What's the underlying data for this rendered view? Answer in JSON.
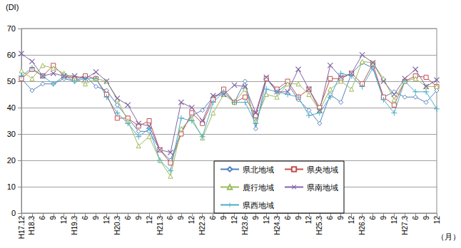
{
  "chart_data": {
    "type": "line",
    "y_label": "(DI)",
    "x_label": "（月）",
    "categories": [
      "H17.12",
      "H18.3",
      "6",
      "9",
      "12",
      "H19.3",
      "6",
      "9",
      "12",
      "H20.3",
      "6",
      "9",
      "12",
      "H21.3",
      "6",
      "9",
      "12",
      "H22.3",
      "6",
      "9",
      "12",
      "H23.6",
      "9",
      "12",
      "H24.3",
      "6",
      "9",
      "12",
      "H25.3",
      "6",
      "9",
      "12",
      "H26.3",
      "6",
      "9",
      "12",
      "H27.3",
      "6",
      "9",
      "12"
    ],
    "ylim": [
      0,
      70
    ],
    "yticks": [
      0,
      10,
      20,
      30,
      40,
      50,
      60,
      70
    ],
    "grid": true,
    "legend": "lower right",
    "series": [
      {
        "name": "県北地域",
        "color": "#4f81bd",
        "marker": "diamond",
        "values": [
          51,
          46.5,
          49,
          49,
          51,
          50,
          52,
          48,
          46.5,
          41,
          36,
          31,
          31,
          24,
          20,
          31,
          37,
          39,
          44,
          46,
          42,
          50,
          32,
          51,
          46,
          49,
          43,
          39,
          34,
          45,
          42,
          53,
          57,
          55,
          44,
          46,
          44,
          44,
          42,
          46.5
        ]
      },
      {
        "name": "県央地域",
        "color": "#c0504d",
        "marker": "square",
        "values": [
          51,
          54.5,
          52,
          56,
          52,
          51,
          52,
          51,
          45,
          36,
          36,
          33,
          35,
          24,
          19,
          30,
          38,
          34,
          43,
          47,
          42,
          44,
          37,
          51,
          47,
          50,
          44,
          47,
          40,
          51,
          51,
          53,
          49,
          56.5,
          44,
          41,
          50,
          52,
          51.5,
          48
        ]
      },
      {
        "name": "鹿行地域",
        "color": "#9bbb59",
        "marker": "triangle",
        "values": [
          54,
          51,
          56,
          55,
          53,
          51,
          49,
          51,
          50,
          43,
          35,
          25.5,
          29,
          20,
          14,
          32,
          36,
          28.5,
          38,
          45,
          42,
          47,
          35,
          45,
          44,
          49,
          49,
          45,
          39,
          47,
          50,
          47,
          57.5,
          57,
          51,
          43,
          50,
          51,
          48,
          48
        ]
      },
      {
        "name": "県南地域",
        "color": "#8064a2",
        "marker": "x",
        "values": [
          60.5,
          57.5,
          52,
          53,
          52,
          52,
          51,
          53.5,
          50,
          43.5,
          41,
          34,
          33,
          24,
          23,
          42,
          40,
          35,
          44.5,
          45,
          48.5,
          48,
          38,
          51.5,
          46,
          46,
          54.5,
          47,
          39,
          56,
          51.5,
          53,
          60,
          57,
          50,
          45,
          51,
          54.5,
          48,
          50.5
        ]
      },
      {
        "name": "県西地域",
        "color": "#4bacc6",
        "marker": "plus",
        "values": [
          52,
          55,
          52,
          49,
          52,
          50,
          51,
          51,
          44,
          38,
          34,
          29,
          32,
          20,
          16,
          36,
          35,
          29,
          42,
          46,
          42,
          42,
          34,
          47,
          46,
          45,
          44,
          37,
          38,
          44,
          53,
          52,
          48,
          55,
          43,
          38,
          50,
          46,
          46,
          39.5
        ]
      }
    ]
  }
}
